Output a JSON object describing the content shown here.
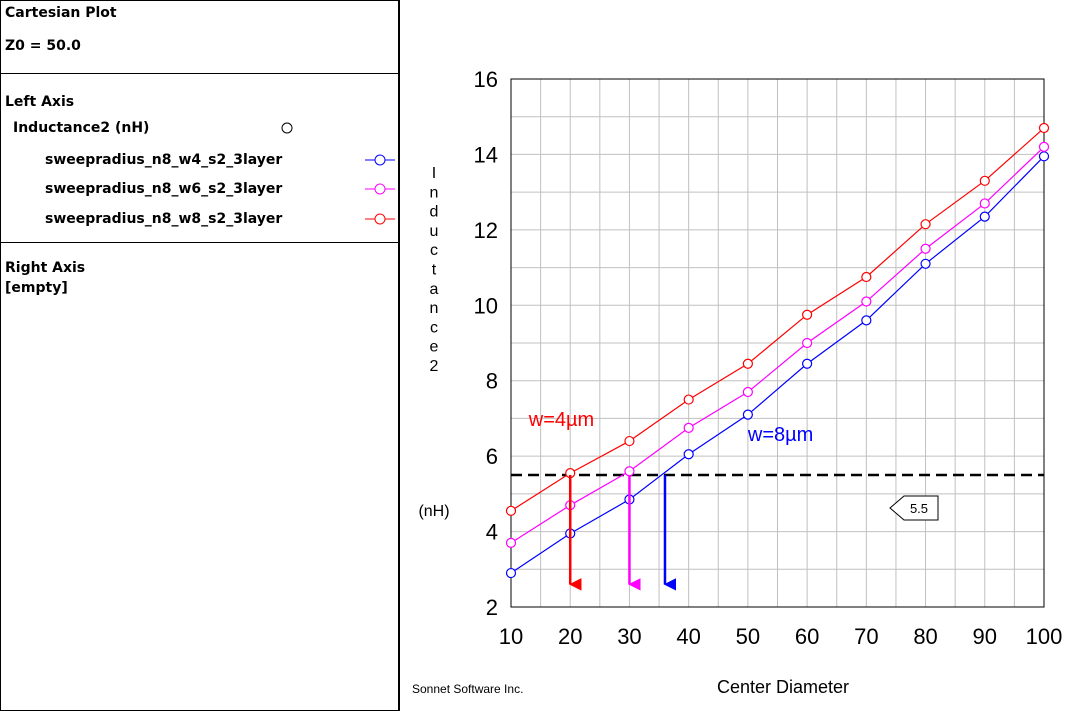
{
  "panel": {
    "title": "Cartesian Plot",
    "z0": "Z0 = 50.0",
    "left_axis_heading": "Left Axis",
    "left_axis_quantity": "Inductance2 (nH)",
    "right_axis_heading": "Right Axis",
    "right_axis_value": "[empty]"
  },
  "legend": [
    {
      "label": "sweepradius_n8_w4_s2_3layer",
      "color": "#0000ff"
    },
    {
      "label": "sweepradius_n8_w6_s2_3layer",
      "color": "#ff00ff"
    },
    {
      "label": "sweepradius_n8_w8_s2_3layer",
      "color": "#ff0000"
    }
  ],
  "footer": "Sonnet Software Inc.",
  "chart_data": {
    "type": "line",
    "xlabel": "Center Diameter",
    "ylabel": "Inductance2",
    "ylabel_unit": "(nH)",
    "xlim": [
      10,
      100
    ],
    "ylim": [
      2,
      16
    ],
    "xticks": [
      10,
      20,
      30,
      40,
      50,
      60,
      70,
      80,
      90,
      100
    ],
    "yticks": [
      2,
      4,
      6,
      8,
      10,
      12,
      14,
      16
    ],
    "grid": true,
    "x": [
      10,
      20,
      30,
      40,
      50,
      60,
      70,
      80,
      90,
      100
    ],
    "series": [
      {
        "name": "sweepradius_n8_w4_s2_3layer",
        "color": "#0000ff",
        "values": [
          2.9,
          3.95,
          4.85,
          6.05,
          7.1,
          8.45,
          9.6,
          11.1,
          12.35,
          13.95
        ]
      },
      {
        "name": "sweepradius_n8_w6_s2_3layer",
        "color": "#ff00ff",
        "values": [
          3.7,
          4.7,
          5.6,
          6.75,
          7.7,
          9.0,
          10.1,
          11.5,
          12.7,
          14.2
        ]
      },
      {
        "name": "sweepradius_n8_w8_s2_3layer",
        "color": "#ff0000",
        "values": [
          4.55,
          5.55,
          6.4,
          7.5,
          8.45,
          9.75,
          10.75,
          12.15,
          13.3,
          14.7
        ]
      }
    ],
    "reference_line": {
      "y": 5.5,
      "label": "5.5",
      "style": "dashed",
      "color": "#000000"
    },
    "arrows": [
      {
        "x": 20,
        "y_from": 5.5,
        "y_to": 2.6,
        "color": "#ff0000"
      },
      {
        "x": 30,
        "y_from": 5.5,
        "y_to": 2.6,
        "color": "#ff00ff"
      },
      {
        "x": 36,
        "y_from": 5.5,
        "y_to": 2.6,
        "color": "#0000ff"
      }
    ],
    "annotations": [
      {
        "text": "w=4µm",
        "color": "#ff0000",
        "x": 13,
        "y": 6.8
      },
      {
        "text": "w=8µm",
        "color": "#0000ff",
        "x": 50,
        "y": 6.4
      }
    ]
  }
}
